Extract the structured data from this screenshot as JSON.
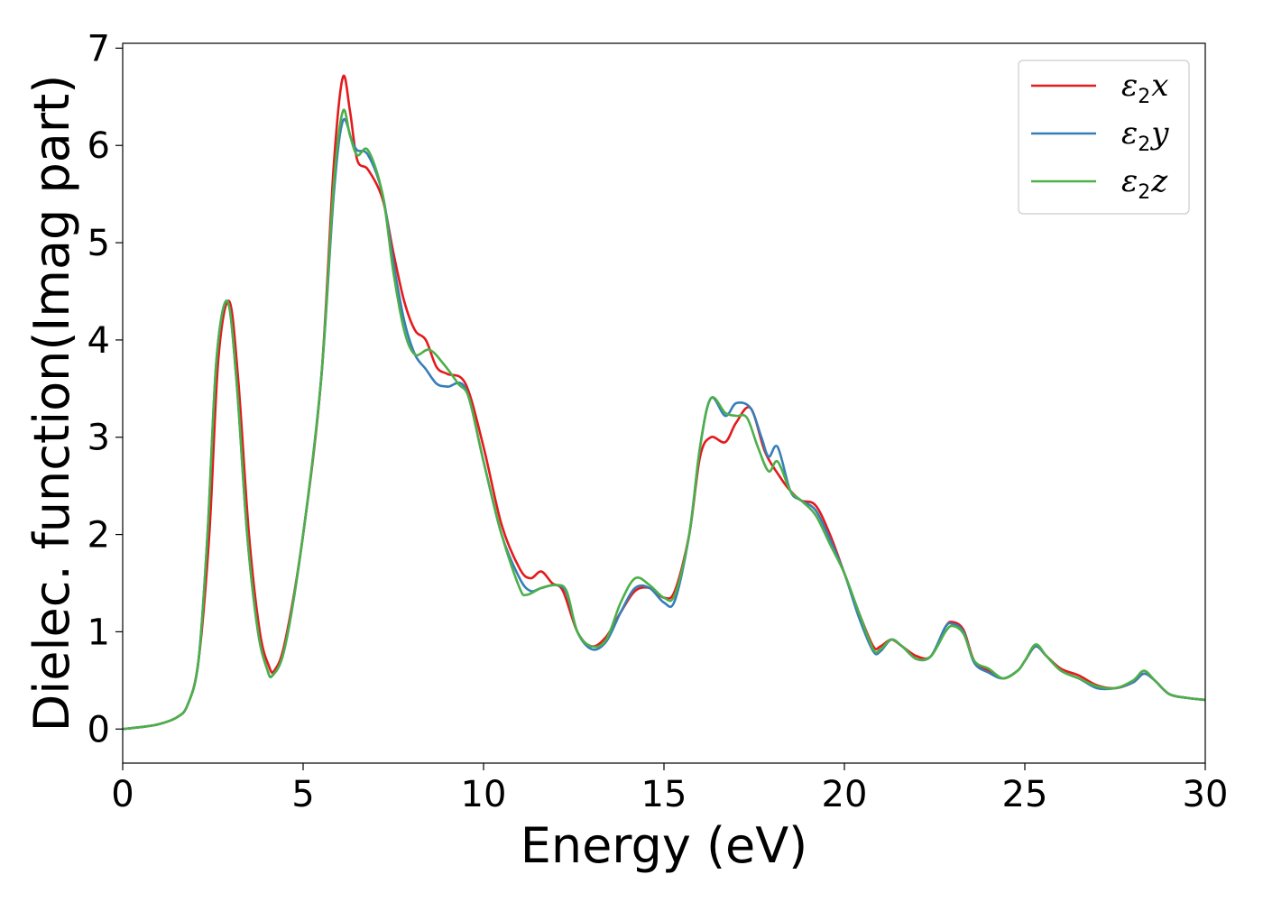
{
  "chart_data": {
    "type": "line",
    "xlabel": "Energy (eV)",
    "ylabel": "Dielec. function(Imag part)",
    "xlim": [
      0,
      30
    ],
    "ylim": [
      -0.35,
      7.05
    ],
    "xticks": [
      0,
      5,
      10,
      15,
      20,
      25,
      30
    ],
    "yticks": [
      0,
      1,
      2,
      3,
      4,
      5,
      6,
      7
    ],
    "grid": false,
    "legend_position": "top-right",
    "series": [
      {
        "name": "ε2x",
        "legend_main": "ε",
        "legend_sub": "2",
        "legend_tail": "x",
        "color": "#e41a1c",
        "points": [
          [
            0,
            0
          ],
          [
            0.5,
            0.02
          ],
          [
            1,
            0.05
          ],
          [
            1.5,
            0.12
          ],
          [
            1.8,
            0.25
          ],
          [
            2.1,
            0.7
          ],
          [
            2.4,
            2.0
          ],
          [
            2.65,
            3.8
          ],
          [
            2.95,
            4.4
          ],
          [
            3.2,
            3.6
          ],
          [
            3.5,
            2.0
          ],
          [
            3.8,
            1.0
          ],
          [
            4.05,
            0.65
          ],
          [
            4.2,
            0.6
          ],
          [
            4.5,
            0.9
          ],
          [
            5.0,
            2.0
          ],
          [
            5.5,
            3.6
          ],
          [
            5.85,
            5.8
          ],
          [
            6.1,
            6.7
          ],
          [
            6.3,
            6.35
          ],
          [
            6.5,
            5.85
          ],
          [
            6.8,
            5.75
          ],
          [
            7.2,
            5.45
          ],
          [
            7.5,
            4.9
          ],
          [
            7.8,
            4.4
          ],
          [
            8.1,
            4.1
          ],
          [
            8.4,
            4.0
          ],
          [
            8.7,
            3.72
          ],
          [
            9.0,
            3.65
          ],
          [
            9.5,
            3.55
          ],
          [
            10.0,
            2.9
          ],
          [
            10.5,
            2.1
          ],
          [
            11.0,
            1.65
          ],
          [
            11.3,
            1.55
          ],
          [
            11.6,
            1.62
          ],
          [
            11.9,
            1.5
          ],
          [
            12.2,
            1.42
          ],
          [
            12.6,
            1.0
          ],
          [
            13.0,
            0.85
          ],
          [
            13.4,
            0.95
          ],
          [
            13.8,
            1.2
          ],
          [
            14.2,
            1.42
          ],
          [
            14.6,
            1.45
          ],
          [
            15.0,
            1.35
          ],
          [
            15.3,
            1.42
          ],
          [
            15.7,
            2.0
          ],
          [
            16.0,
            2.8
          ],
          [
            16.3,
            3.0
          ],
          [
            16.7,
            2.95
          ],
          [
            17.0,
            3.15
          ],
          [
            17.4,
            3.3
          ],
          [
            17.8,
            2.85
          ],
          [
            18.2,
            2.6
          ],
          [
            18.5,
            2.45
          ],
          [
            18.8,
            2.35
          ],
          [
            19.2,
            2.3
          ],
          [
            19.6,
            2.0
          ],
          [
            20.0,
            1.6
          ],
          [
            20.4,
            1.2
          ],
          [
            20.8,
            0.85
          ],
          [
            21.0,
            0.85
          ],
          [
            21.3,
            0.92
          ],
          [
            21.6,
            0.85
          ],
          [
            22.0,
            0.75
          ],
          [
            22.4,
            0.75
          ],
          [
            22.8,
            1.05
          ],
          [
            23.0,
            1.1
          ],
          [
            23.3,
            1.02
          ],
          [
            23.6,
            0.7
          ],
          [
            24.0,
            0.6
          ],
          [
            24.4,
            0.52
          ],
          [
            24.8,
            0.6
          ],
          [
            25.0,
            0.7
          ],
          [
            25.3,
            0.85
          ],
          [
            25.6,
            0.75
          ],
          [
            26.0,
            0.62
          ],
          [
            26.5,
            0.55
          ],
          [
            27.0,
            0.45
          ],
          [
            27.5,
            0.42
          ],
          [
            28.0,
            0.48
          ],
          [
            28.3,
            0.57
          ],
          [
            28.6,
            0.5
          ],
          [
            29.0,
            0.36
          ],
          [
            29.5,
            0.32
          ],
          [
            30.0,
            0.3
          ]
        ]
      },
      {
        "name": "ε2y",
        "legend_main": "ε",
        "legend_sub": "2",
        "legend_tail": "y",
        "color": "#377eb8",
        "points": [
          [
            0,
            0
          ],
          [
            0.5,
            0.02
          ],
          [
            1,
            0.05
          ],
          [
            1.5,
            0.12
          ],
          [
            1.8,
            0.25
          ],
          [
            2.1,
            0.7
          ],
          [
            2.35,
            2.0
          ],
          [
            2.6,
            3.8
          ],
          [
            2.9,
            4.4
          ],
          [
            3.15,
            3.6
          ],
          [
            3.45,
            2.0
          ],
          [
            3.75,
            1.0
          ],
          [
            4.0,
            0.62
          ],
          [
            4.15,
            0.55
          ],
          [
            4.5,
            0.85
          ],
          [
            5.0,
            2.0
          ],
          [
            5.5,
            3.6
          ],
          [
            5.85,
            5.5
          ],
          [
            6.1,
            6.25
          ],
          [
            6.35,
            6.05
          ],
          [
            6.5,
            5.95
          ],
          [
            6.8,
            5.9
          ],
          [
            7.2,
            5.5
          ],
          [
            7.5,
            4.8
          ],
          [
            7.8,
            4.2
          ],
          [
            8.1,
            3.85
          ],
          [
            8.4,
            3.7
          ],
          [
            8.7,
            3.55
          ],
          [
            9.0,
            3.52
          ],
          [
            9.5,
            3.5
          ],
          [
            10.0,
            2.75
          ],
          [
            10.5,
            2.0
          ],
          [
            11.0,
            1.55
          ],
          [
            11.3,
            1.42
          ],
          [
            11.6,
            1.45
          ],
          [
            12.0,
            1.48
          ],
          [
            12.3,
            1.4
          ],
          [
            12.6,
            1.0
          ],
          [
            13.0,
            0.82
          ],
          [
            13.4,
            0.9
          ],
          [
            13.8,
            1.2
          ],
          [
            14.2,
            1.45
          ],
          [
            14.6,
            1.45
          ],
          [
            15.0,
            1.3
          ],
          [
            15.3,
            1.32
          ],
          [
            15.7,
            2.0
          ],
          [
            16.0,
            2.9
          ],
          [
            16.3,
            3.4
          ],
          [
            16.7,
            3.22
          ],
          [
            17.0,
            3.35
          ],
          [
            17.4,
            3.3
          ],
          [
            17.7,
            3.0
          ],
          [
            17.9,
            2.8
          ],
          [
            18.15,
            2.9
          ],
          [
            18.5,
            2.45
          ],
          [
            18.8,
            2.35
          ],
          [
            19.2,
            2.25
          ],
          [
            19.6,
            1.95
          ],
          [
            20.0,
            1.6
          ],
          [
            20.4,
            1.15
          ],
          [
            20.8,
            0.8
          ],
          [
            21.0,
            0.8
          ],
          [
            21.3,
            0.92
          ],
          [
            21.6,
            0.85
          ],
          [
            22.0,
            0.72
          ],
          [
            22.4,
            0.75
          ],
          [
            22.8,
            1.05
          ],
          [
            23.0,
            1.08
          ],
          [
            23.3,
            1.0
          ],
          [
            23.6,
            0.68
          ],
          [
            24.0,
            0.58
          ],
          [
            24.4,
            0.52
          ],
          [
            24.8,
            0.6
          ],
          [
            25.0,
            0.7
          ],
          [
            25.3,
            0.85
          ],
          [
            25.6,
            0.75
          ],
          [
            26.0,
            0.6
          ],
          [
            26.5,
            0.52
          ],
          [
            27.0,
            0.42
          ],
          [
            27.5,
            0.42
          ],
          [
            28.0,
            0.48
          ],
          [
            28.3,
            0.57
          ],
          [
            28.6,
            0.5
          ],
          [
            29.0,
            0.36
          ],
          [
            29.5,
            0.32
          ],
          [
            30.0,
            0.3
          ]
        ]
      },
      {
        "name": "ε2z",
        "legend_main": "ε",
        "legend_sub": "2",
        "legend_tail": "z",
        "color": "#4daf4a",
        "points": [
          [
            0,
            0
          ],
          [
            0.5,
            0.02
          ],
          [
            1,
            0.05
          ],
          [
            1.5,
            0.12
          ],
          [
            1.8,
            0.25
          ],
          [
            2.1,
            0.7
          ],
          [
            2.35,
            2.0
          ],
          [
            2.6,
            3.8
          ],
          [
            2.9,
            4.4
          ],
          [
            3.15,
            3.6
          ],
          [
            3.45,
            2.0
          ],
          [
            3.75,
            1.0
          ],
          [
            4.0,
            0.62
          ],
          [
            4.15,
            0.55
          ],
          [
            4.5,
            0.85
          ],
          [
            5.0,
            2.0
          ],
          [
            5.5,
            3.6
          ],
          [
            5.85,
            5.6
          ],
          [
            6.1,
            6.35
          ],
          [
            6.3,
            6.1
          ],
          [
            6.5,
            5.9
          ],
          [
            6.8,
            5.95
          ],
          [
            7.2,
            5.5
          ],
          [
            7.5,
            4.7
          ],
          [
            7.8,
            4.1
          ],
          [
            8.1,
            3.85
          ],
          [
            8.5,
            3.9
          ],
          [
            8.9,
            3.75
          ],
          [
            9.3,
            3.55
          ],
          [
            9.6,
            3.4
          ],
          [
            10.0,
            2.75
          ],
          [
            10.5,
            2.0
          ],
          [
            11.0,
            1.45
          ],
          [
            11.2,
            1.38
          ],
          [
            11.6,
            1.45
          ],
          [
            12.0,
            1.48
          ],
          [
            12.3,
            1.42
          ],
          [
            12.6,
            1.0
          ],
          [
            13.0,
            0.85
          ],
          [
            13.4,
            0.92
          ],
          [
            13.8,
            1.3
          ],
          [
            14.2,
            1.55
          ],
          [
            14.6,
            1.48
          ],
          [
            15.0,
            1.35
          ],
          [
            15.3,
            1.38
          ],
          [
            15.7,
            2.0
          ],
          [
            16.0,
            2.9
          ],
          [
            16.3,
            3.4
          ],
          [
            16.7,
            3.25
          ],
          [
            17.0,
            3.22
          ],
          [
            17.3,
            3.2
          ],
          [
            17.6,
            2.9
          ],
          [
            17.9,
            2.65
          ],
          [
            18.15,
            2.75
          ],
          [
            18.5,
            2.45
          ],
          [
            18.8,
            2.35
          ],
          [
            19.2,
            2.2
          ],
          [
            19.6,
            1.9
          ],
          [
            20.0,
            1.6
          ],
          [
            20.4,
            1.2
          ],
          [
            20.8,
            0.82
          ],
          [
            21.0,
            0.82
          ],
          [
            21.3,
            0.92
          ],
          [
            21.6,
            0.85
          ],
          [
            22.0,
            0.72
          ],
          [
            22.4,
            0.75
          ],
          [
            22.8,
            1.0
          ],
          [
            23.0,
            1.06
          ],
          [
            23.3,
            0.98
          ],
          [
            23.6,
            0.7
          ],
          [
            24.0,
            0.62
          ],
          [
            24.4,
            0.52
          ],
          [
            24.8,
            0.6
          ],
          [
            25.0,
            0.7
          ],
          [
            25.3,
            0.87
          ],
          [
            25.6,
            0.75
          ],
          [
            26.0,
            0.6
          ],
          [
            26.5,
            0.52
          ],
          [
            27.0,
            0.44
          ],
          [
            27.5,
            0.42
          ],
          [
            28.0,
            0.5
          ],
          [
            28.3,
            0.6
          ],
          [
            28.6,
            0.5
          ],
          [
            29.0,
            0.36
          ],
          [
            29.5,
            0.32
          ],
          [
            30.0,
            0.3
          ]
        ]
      }
    ]
  }
}
